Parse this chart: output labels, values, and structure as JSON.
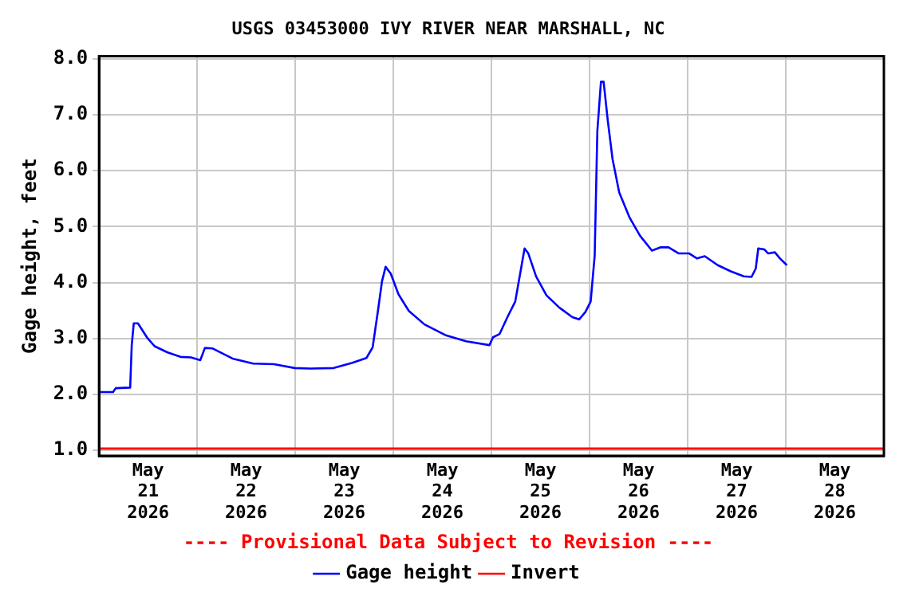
{
  "chart_data": {
    "type": "line",
    "title": "USGS 03453000 IVY RIVER NEAR MARSHALL, NC",
    "ylabel": "Gage height, feet",
    "xlim": [
      "2026-05-21",
      "2026-05-29"
    ],
    "xticks": [
      {
        "value": "2026-05-21T12:00",
        "label": "May 21 2026"
      },
      {
        "value": "2026-05-22",
        "label": null
      },
      {
        "value": "2026-05-22T12:00",
        "label": "May 22 2026"
      },
      {
        "value": "2026-05-23",
        "label": null
      },
      {
        "value": "2026-05-23T12:00",
        "label": "May 23 2026"
      },
      {
        "value": "2026-05-24",
        "label": null
      },
      {
        "value": "2026-05-24T12:00",
        "label": "May 24 2026"
      },
      {
        "value": "2026-05-25",
        "label": null
      },
      {
        "value": "2026-05-25T12:00",
        "label": "May 25 2026"
      },
      {
        "value": "2026-05-26",
        "label": null
      },
      {
        "value": "2026-05-26T12:00",
        "label": "May 26 2026"
      },
      {
        "value": "2026-05-27",
        "label": null
      },
      {
        "value": "2026-05-27T12:00",
        "label": "May 27 2026"
      },
      {
        "value": "2026-05-28",
        "label": null
      },
      {
        "value": "2026-05-28T12:00",
        "label": "May 28 2026"
      }
    ],
    "ylim": [
      0.9,
      8.05
    ],
    "yticks": [
      {
        "value": 1,
        "label": "1.0"
      },
      {
        "value": 2,
        "label": "2.0"
      },
      {
        "value": 3,
        "label": "3.0"
      },
      {
        "value": 4,
        "label": "4.0"
      },
      {
        "value": 5,
        "label": "5.0"
      },
      {
        "value": 6,
        "label": "6.0"
      },
      {
        "value": 7,
        "label": "7.0"
      },
      {
        "value": 8,
        "label": "8.0"
      }
    ],
    "grid": true,
    "legend": "bottom",
    "annotations": [
      "---- Provisional Data Subject to Revision ----"
    ],
    "series": [
      {
        "name": "Gage height",
        "color": "#0000ff",
        "x": [
          "2026-05-21T00:15",
          "2026-05-21T03:26",
          "2026-05-21T04:05",
          "2026-05-21T07:37",
          "2026-05-21T08:00",
          "2026-05-21T08:30",
          "2026-05-21T09:31",
          "2026-05-21T11:42",
          "2026-05-21T13:36",
          "2026-05-21T16:46",
          "2026-05-21T19:55",
          "2026-05-21T22:29",
          "2026-05-22T00:46",
          "2026-05-22T01:54",
          "2026-05-22T03:49",
          "2026-05-22T08:39",
          "2026-05-22T13:43",
          "2026-05-22T18:47",
          "2026-05-22T23:53",
          "2026-05-23T03:42",
          "2026-05-23T09:25",
          "2026-05-23T13:50",
          "2026-05-23T17:25",
          "2026-05-23T18:56",
          "2026-05-23T20:11",
          "2026-05-23T21:13",
          "2026-05-23T22:06",
          "2026-05-23T23:21",
          "2026-05-24T01:15",
          "2026-05-24T03:48",
          "2026-05-24T07:37",
          "2026-05-24T12:41",
          "2026-05-24T17:47",
          "2026-05-24T23:30",
          "2026-05-25T00:23",
          "2026-05-25T02:00",
          "2026-05-25T03:54",
          "2026-05-25T05:49",
          "2026-05-25T07:07",
          "2026-05-25T08:06",
          "2026-05-25T09:01",
          "2026-05-25T10:55",
          "2026-05-25T13:27",
          "2026-05-25T16:38",
          "2026-05-25T19:48",
          "2026-05-25T21:26",
          "2026-05-25T22:58",
          "2026-05-26T00:16",
          "2026-05-26T01:15",
          "2026-05-26T01:54",
          "2026-05-26T02:47",
          "2026-05-26T03:26",
          "2026-05-26T04:28",
          "2026-05-26T05:37",
          "2026-05-26T07:15",
          "2026-05-26T09:48",
          "2026-05-26T12:19",
          "2026-05-26T15:15",
          "2026-05-26T17:25",
          "2026-05-26T19:19",
          "2026-05-26T21:50",
          "2026-05-27T00:23",
          "2026-05-27T02:17",
          "2026-05-27T04:11",
          "2026-05-27T07:21",
          "2026-05-27T10:33",
          "2026-05-27T13:43",
          "2026-05-27T15:37",
          "2026-05-27T16:39",
          "2026-05-27T17:16",
          "2026-05-27T18:47",
          "2026-05-27T19:42",
          "2026-05-27T21:20",
          "2026-05-27T22:35",
          "2026-05-28T00:16"
        ],
        "values": [
          2.04,
          2.04,
          2.11,
          2.12,
          2.88,
          3.27,
          3.27,
          3.02,
          2.86,
          2.75,
          2.67,
          2.66,
          2.61,
          2.83,
          2.82,
          2.64,
          2.55,
          2.54,
          2.47,
          2.46,
          2.47,
          2.56,
          2.65,
          2.84,
          3.47,
          4.02,
          4.28,
          4.16,
          3.79,
          3.49,
          3.25,
          3.06,
          2.95,
          2.88,
          3.02,
          3.08,
          3.38,
          3.66,
          4.2,
          4.61,
          4.52,
          4.11,
          3.77,
          3.55,
          3.38,
          3.34,
          3.47,
          3.66,
          4.48,
          6.71,
          7.59,
          7.59,
          6.89,
          6.21,
          5.61,
          5.16,
          4.84,
          4.57,
          4.63,
          4.63,
          4.52,
          4.52,
          4.43,
          4.47,
          4.31,
          4.2,
          4.11,
          4.1,
          4.25,
          4.61,
          4.59,
          4.52,
          4.54,
          4.43,
          4.31
        ]
      },
      {
        "name": "Invert",
        "color": "#ff0000",
        "x": [
          "2026-05-21",
          "2026-05-29"
        ],
        "values": [
          1.03,
          1.03
        ]
      }
    ]
  }
}
